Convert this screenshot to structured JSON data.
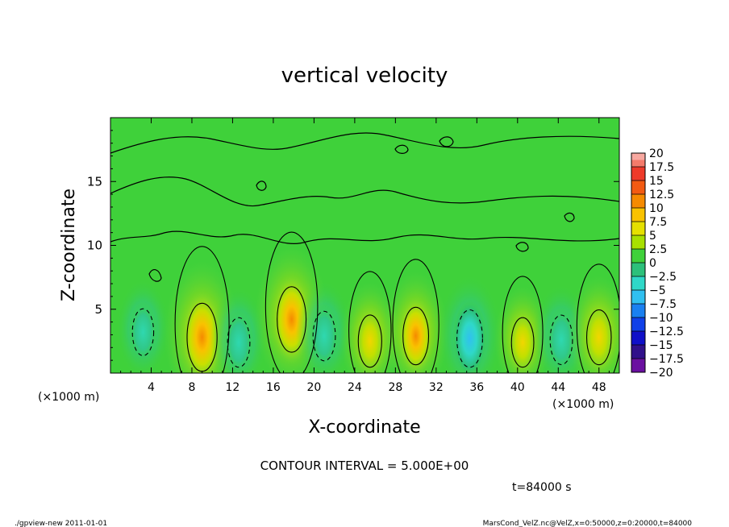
{
  "chart_data": {
    "type": "heatmap",
    "title": "vertical velocity",
    "xlabel": "X-coordinate",
    "ylabel": "Z-coordinate",
    "x_unit_left": "(×1000 m)",
    "x_unit_right": "(×1000 m)",
    "xlim": [
      0,
      50
    ],
    "ylim": [
      0,
      20
    ],
    "xticks": [
      "4",
      "8",
      "12",
      "16",
      "20",
      "24",
      "28",
      "32",
      "36",
      "40",
      "44",
      "48"
    ],
    "yticks": [
      "5",
      "10",
      "15"
    ],
    "contour_interval_label": "CONTOUR INTERVAL = 5.000E+00",
    "time_label": "t=84000 s",
    "colorbar": {
      "levels": [
        "20",
        "17.5",
        "15",
        "12.5",
        "10",
        "7.5",
        "5",
        "2.5",
        "0",
        "−2.5",
        "−5",
        "−7.5",
        "−10",
        "−12.5",
        "−15",
        "−17.5",
        "−20"
      ],
      "colors": [
        "#f7a8a0",
        "#f47a6a",
        "#ee3a2a",
        "#f25a12",
        "#f58a00",
        "#f9c200",
        "#e5e000",
        "#a8e000",
        "#3fd13a",
        "#2cc07a",
        "#2fd8c8",
        "#30c0f0",
        "#1a80f0",
        "#1040e8",
        "#1010c8",
        "#30108a",
        "#6a10a0"
      ]
    },
    "cells": [
      {
        "x": 3.2,
        "z": 3.2,
        "sign": -1,
        "value": -4
      },
      {
        "x": 9.0,
        "z": 2.8,
        "sign": 1,
        "value": 12
      },
      {
        "x": 12.6,
        "z": 2.4,
        "sign": -1,
        "value": -5
      },
      {
        "x": 17.8,
        "z": 4.2,
        "sign": 1,
        "value": 11
      },
      {
        "x": 21.0,
        "z": 2.9,
        "sign": -1,
        "value": -5
      },
      {
        "x": 25.5,
        "z": 2.5,
        "sign": 1,
        "value": 6
      },
      {
        "x": 30.0,
        "z": 2.9,
        "sign": 1,
        "value": 8
      },
      {
        "x": 35.3,
        "z": 2.7,
        "sign": -1,
        "value": -8
      },
      {
        "x": 40.5,
        "z": 2.4,
        "sign": 1,
        "value": 5
      },
      {
        "x": 44.3,
        "z": 2.6,
        "sign": -1,
        "value": -5
      },
      {
        "x": 48.0,
        "z": 2.8,
        "sign": 1,
        "value": 7
      }
    ]
  },
  "footer": {
    "left": "./gpview-new  2011-01-01",
    "right": "MarsCond_VelZ.nc@VelZ,x=0:50000,z=0:20000,t=84000"
  }
}
